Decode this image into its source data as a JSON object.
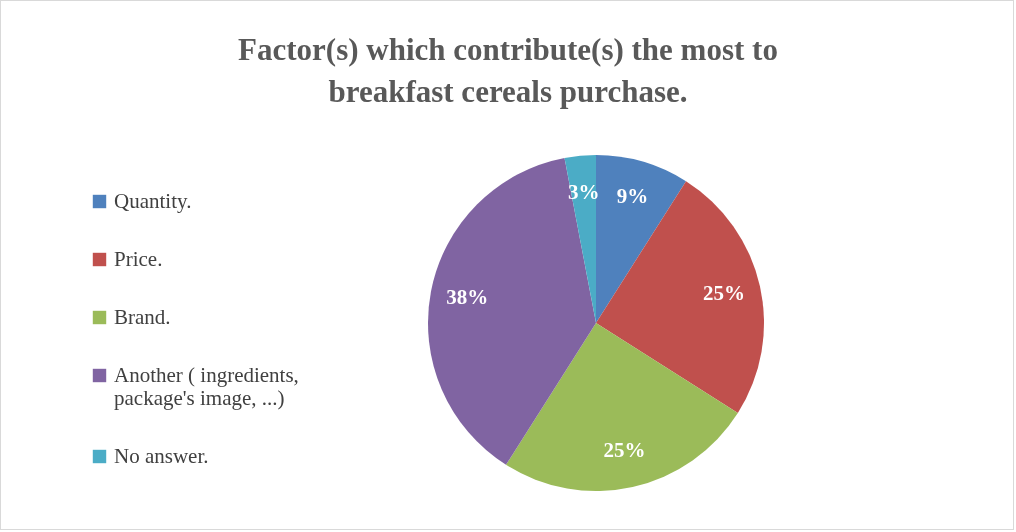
{
  "chart_data": {
    "type": "pie",
    "title": "Factor(s) which contribute(s) the most to breakfast cereals purchase.",
    "categories": [
      "Quantity.",
      "Price.",
      "Brand.",
      "Another ( ingredients, package's image, ...)",
      "No answer."
    ],
    "values": [
      9,
      25,
      25,
      38,
      3
    ],
    "value_labels": [
      "9%",
      "25%",
      "25%",
      "38%",
      "3%"
    ],
    "colors": [
      "#4f81bd",
      "#c0504d",
      "#9bbb59",
      "#8064a2",
      "#4bacc6"
    ],
    "legend": "left"
  }
}
